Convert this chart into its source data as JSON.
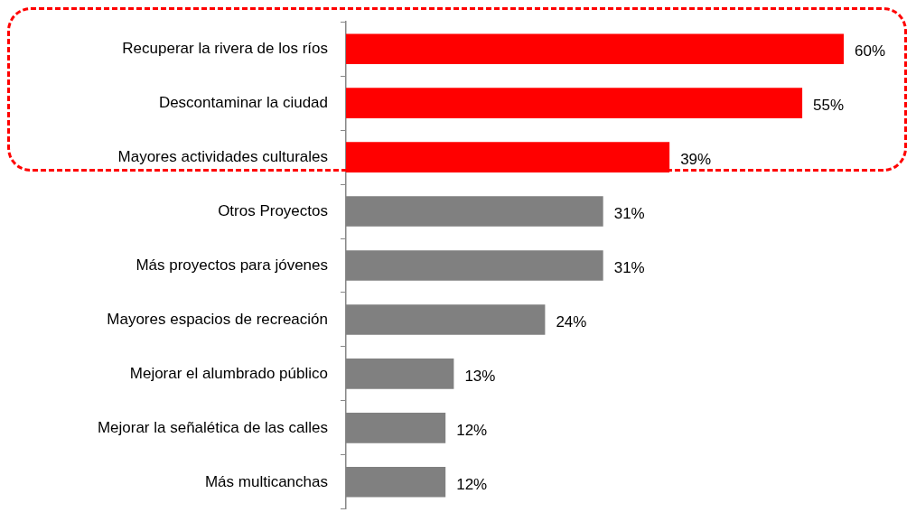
{
  "chart_data": {
    "type": "bar",
    "orientation": "horizontal",
    "categories": [
      "Recuperar la rivera de los ríos",
      "Descontaminar la ciudad",
      "Mayores actividades culturales",
      "Otros Proyectos",
      "Más proyectos para jóvenes",
      "Mayores espacios de recreación",
      "Mejorar el alumbrado público",
      "Mejorar la señalética de las calles",
      "Más multicanchas"
    ],
    "values": [
      60,
      55,
      39,
      31,
      31,
      24,
      13,
      12,
      12
    ],
    "value_labels": [
      "60%",
      "55%",
      "39%",
      "31%",
      "31%",
      "24%",
      "13%",
      "12%",
      "12%"
    ],
    "colors": [
      "#ff0000",
      "#ff0000",
      "#ff0000",
      "#808080",
      "#808080",
      "#808080",
      "#808080",
      "#808080",
      "#808080"
    ],
    "tick_labels": "y",
    "legend": false
  }
}
